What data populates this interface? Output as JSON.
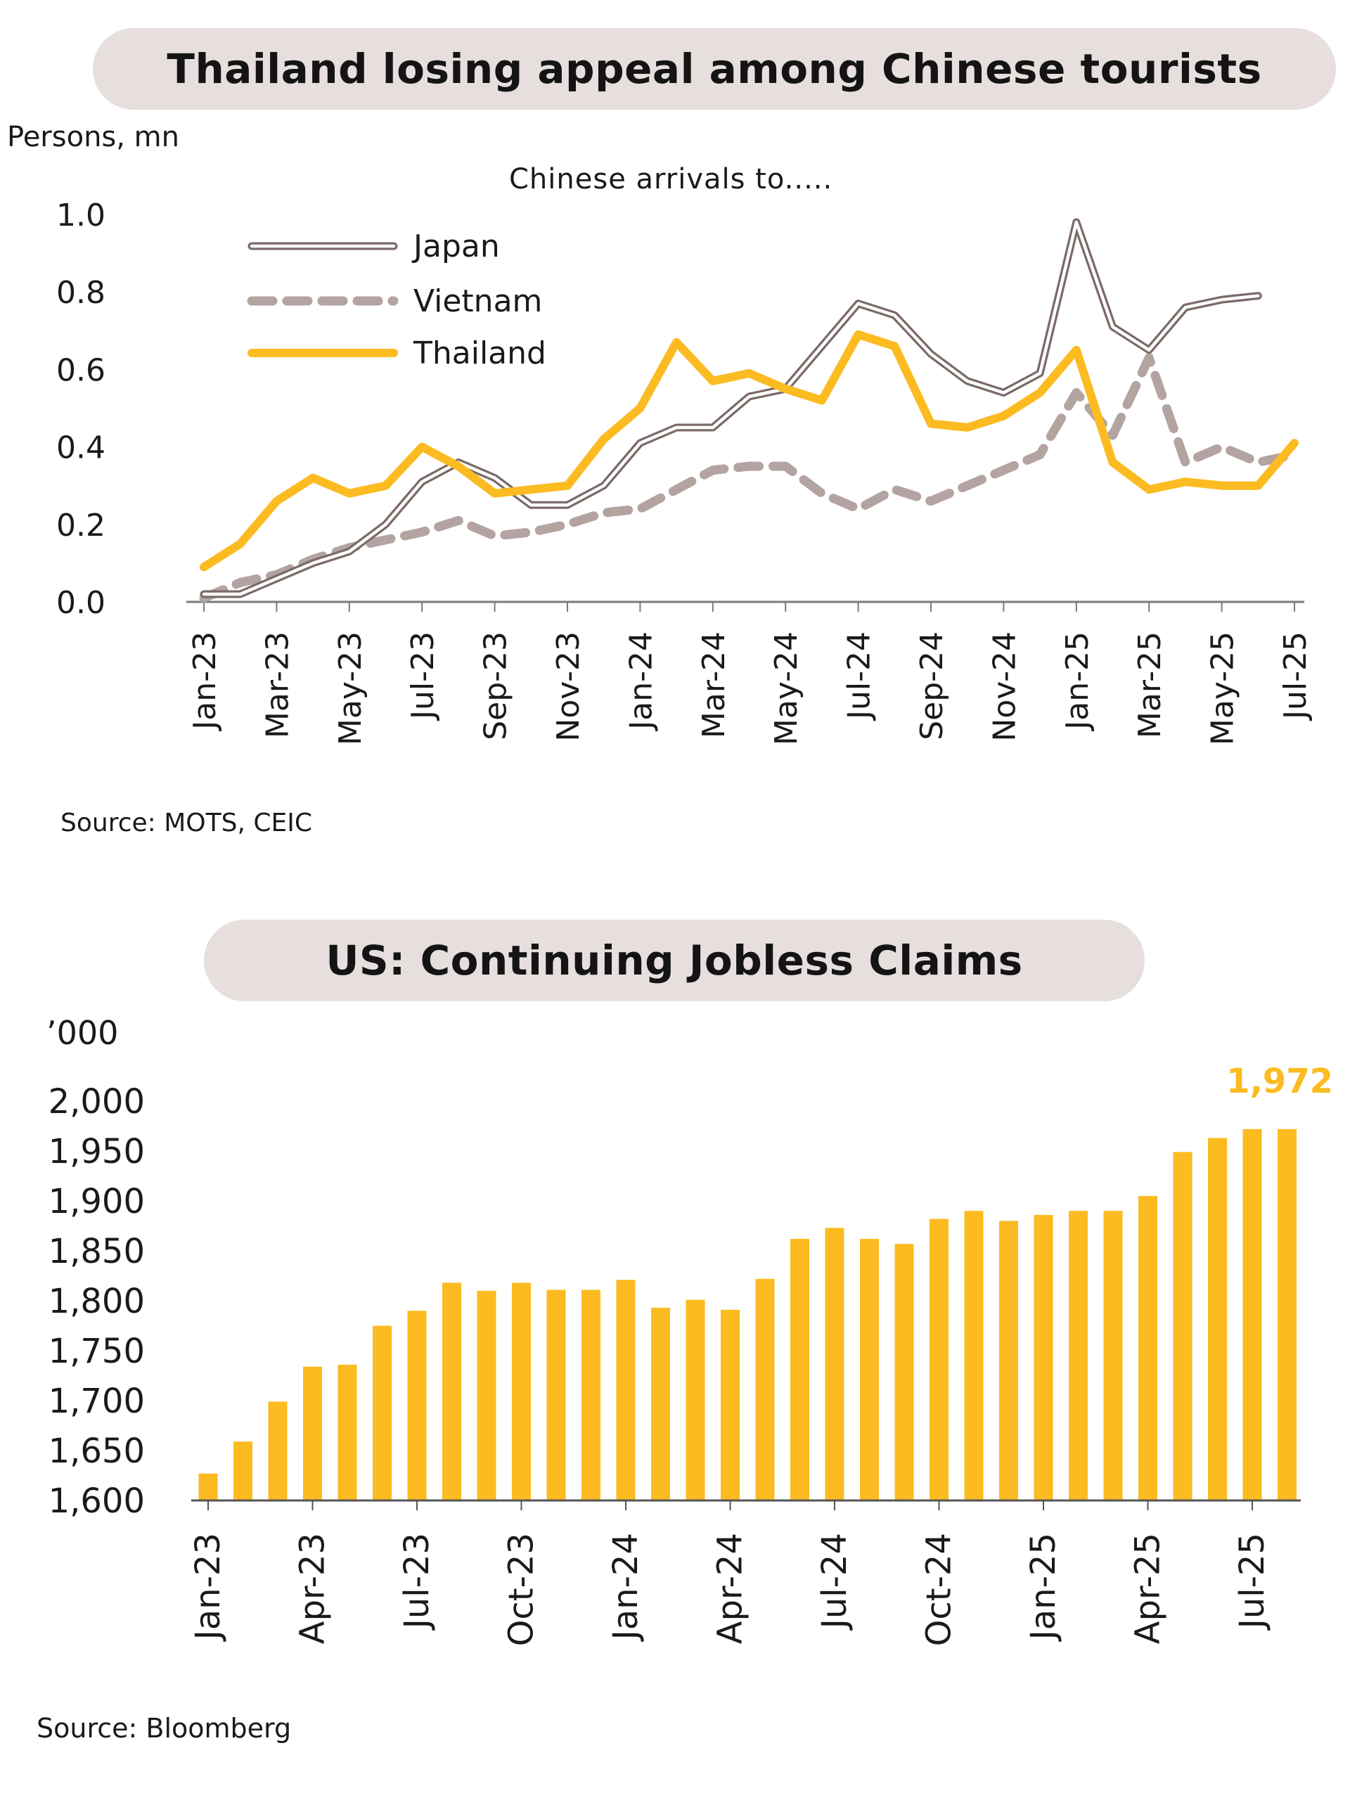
{
  "chart_data": [
    {
      "type": "line",
      "title": "Thailand losing appeal among Chinese tourists",
      "ylabel": "Persons, mn",
      "annotation": "Chinese arrivals to.....",
      "ylim": [
        0.0,
        1.0
      ],
      "yticks": [
        "0.0",
        "0.2",
        "0.4",
        "0.6",
        "0.8",
        "1.0"
      ],
      "xticks": [
        "Jan-23",
        "Mar-23",
        "May-23",
        "Jul-23",
        "Sep-23",
        "Nov-23",
        "Jan-24",
        "Mar-24",
        "May-24",
        "Jul-24",
        "Sep-24",
        "Nov-24",
        "Jan-25",
        "Mar-25",
        "May-25",
        "Jul-25"
      ],
      "x": [
        "Jan-23",
        "Feb-23",
        "Mar-23",
        "Apr-23",
        "May-23",
        "Jun-23",
        "Jul-23",
        "Aug-23",
        "Sep-23",
        "Oct-23",
        "Nov-23",
        "Dec-23",
        "Jan-24",
        "Feb-24",
        "Mar-24",
        "Apr-24",
        "May-24",
        "Jun-24",
        "Jul-24",
        "Aug-24",
        "Sep-24",
        "Oct-24",
        "Nov-24",
        "Dec-24",
        "Jan-25",
        "Feb-25",
        "Mar-25",
        "Apr-25",
        "May-25",
        "Jun-25",
        "Jul-25"
      ],
      "legend_position": "top-left",
      "series": [
        {
          "name": "Japan",
          "color": "#7a6a68",
          "style": "double-outline",
          "values": [
            0.02,
            0.02,
            0.06,
            0.1,
            0.13,
            0.2,
            0.31,
            0.36,
            0.32,
            0.25,
            0.25,
            0.3,
            0.41,
            0.45,
            0.45,
            0.53,
            0.55,
            0.66,
            0.77,
            0.74,
            0.64,
            0.57,
            0.54,
            0.59,
            0.98,
            0.71,
            0.65,
            0.76,
            0.78,
            0.79,
            null
          ]
        },
        {
          "name": "Vietnam",
          "color": "#b3a3a1",
          "style": "dashed",
          "values": [
            0.01,
            0.05,
            0.07,
            0.11,
            0.14,
            0.16,
            0.18,
            0.21,
            0.17,
            0.18,
            0.2,
            0.23,
            0.24,
            0.29,
            0.34,
            0.35,
            0.35,
            0.28,
            0.24,
            0.29,
            0.26,
            0.3,
            0.34,
            0.38,
            0.54,
            0.43,
            0.63,
            0.36,
            0.4,
            0.36,
            0.38
          ]
        },
        {
          "name": "Thailand",
          "color": "#fbbb21",
          "style": "solid",
          "values": [
            0.09,
            0.15,
            0.26,
            0.32,
            0.28,
            0.3,
            0.4,
            0.35,
            0.28,
            0.29,
            0.3,
            0.42,
            0.5,
            0.67,
            0.57,
            0.59,
            0.55,
            0.52,
            0.69,
            0.66,
            0.46,
            0.45,
            0.48,
            0.54,
            0.65,
            0.36,
            0.29,
            0.31,
            0.3,
            0.3,
            0.41
          ]
        }
      ],
      "source": "Source: MOTS, CEIC"
    },
    {
      "type": "bar",
      "title": "US: Continuing Jobless Claims",
      "ylabel": "’000",
      "ylim": [
        1600,
        2000
      ],
      "yticks": [
        "1,600",
        "1,650",
        "1,700",
        "1,750",
        "1,800",
        "1,850",
        "1,900",
        "1,950",
        "2,000"
      ],
      "xticks": [
        "Jan-23",
        "Apr-23",
        "Jul-23",
        "Oct-23",
        "Jan-24",
        "Apr-24",
        "Jul-24",
        "Oct-24",
        "Jan-25",
        "Apr-25",
        "Jul-25"
      ],
      "categories": [
        "Jan-23",
        "Feb-23",
        "Mar-23",
        "Apr-23",
        "May-23",
        "Jun-23",
        "Jul-23",
        "Aug-23",
        "Sep-23",
        "Oct-23",
        "Nov-23",
        "Dec-23",
        "Jan-24",
        "Feb-24",
        "Mar-24",
        "Apr-24",
        "May-24",
        "Jun-24",
        "Jul-24",
        "Aug-24",
        "Sep-24",
        "Oct-24",
        "Nov-24",
        "Dec-24",
        "Jan-25",
        "Feb-25",
        "Mar-25",
        "Apr-25",
        "May-25",
        "Jun-25",
        "Jul-25",
        "Aug-25"
      ],
      "values": [
        1627,
        1659,
        1699,
        1734,
        1736,
        1775,
        1790,
        1818,
        1810,
        1818,
        1811,
        1811,
        1821,
        1793,
        1801,
        1791,
        1822,
        1862,
        1873,
        1862,
        1857,
        1882,
        1890,
        1880,
        1886,
        1890,
        1890,
        1905,
        1949,
        1963,
        1972,
        1972
      ],
      "color": "#fbbb21",
      "last_value_label": "1,972",
      "source": "Source: Bloomberg"
    }
  ]
}
